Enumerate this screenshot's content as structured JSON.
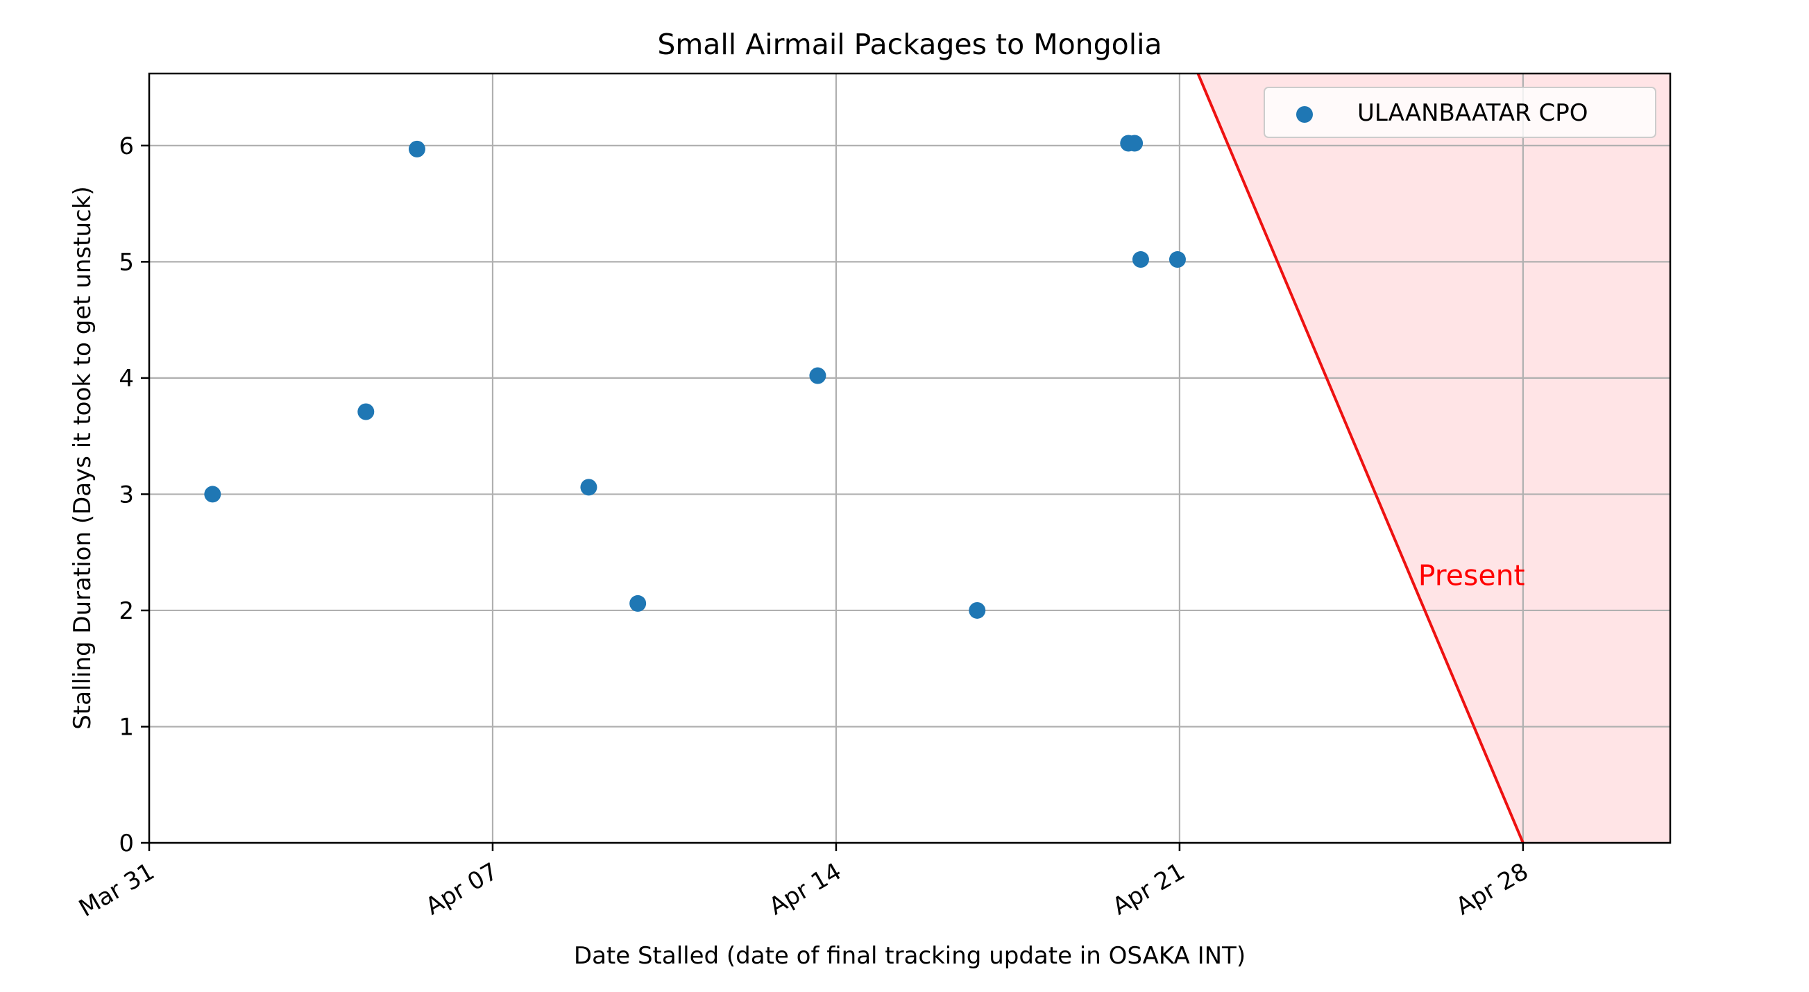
{
  "chart_data": {
    "type": "scatter",
    "title": "Small Airmail Packages to Mongolia",
    "xlabel": "Date Stalled (date of final tracking update in OSAKA INT)",
    "ylabel": "Stalling Duration (Days it took to get unstuck)",
    "x_axis": {
      "type": "date",
      "range": [
        "2023-03-31",
        "2023-05-01"
      ],
      "ticks": [
        {
          "date": "2023-03-31",
          "label": "Mar 31"
        },
        {
          "date": "2023-04-07",
          "label": "Apr 07"
        },
        {
          "date": "2023-04-14",
          "label": "Apr 14"
        },
        {
          "date": "2023-04-21",
          "label": "Apr 21"
        },
        {
          "date": "2023-04-28",
          "label": "Apr 28"
        }
      ],
      "tick_rotation_deg": -30
    },
    "y_axis": {
      "range": [
        0,
        6.62
      ],
      "ticks": [
        0,
        1,
        2,
        3,
        4,
        5,
        6
      ]
    },
    "grid": true,
    "legend": {
      "placement": "top-right"
    },
    "series": [
      {
        "name": "ULAANBAATAR CPO",
        "color": "#1f77b4",
        "points": [
          {
            "x": "2023-04-01 07:00",
            "y": 3.0
          },
          {
            "x": "2023-04-04 10:00",
            "y": 3.71
          },
          {
            "x": "2023-04-05 11:00",
            "y": 5.97
          },
          {
            "x": "2023-04-08 23:00",
            "y": 3.06
          },
          {
            "x": "2023-04-09 23:00",
            "y": 2.06
          },
          {
            "x": "2023-04-13 15:00",
            "y": 4.02
          },
          {
            "x": "2023-04-16 21:00",
            "y": 2.0
          },
          {
            "x": "2023-04-19 23:00",
            "y": 6.02
          },
          {
            "x": "2023-04-20 02:00",
            "y": 6.02
          },
          {
            "x": "2023-04-20 05:00",
            "y": 5.02
          },
          {
            "x": "2023-04-20 23:00",
            "y": 5.02
          }
        ]
      }
    ],
    "annotation": {
      "text": "Present",
      "color": "#ff0000",
      "fill_color": "#ffe4e6",
      "line_color": "#ee1111",
      "line": [
        {
          "x": "2023-04-21 09:00",
          "y": 6.62
        },
        {
          "x": "2023-04-28 00:00",
          "y": 0
        }
      ],
      "label_position": {
        "x": "2023-04-26 12:00",
        "y": 2.3
      }
    }
  }
}
